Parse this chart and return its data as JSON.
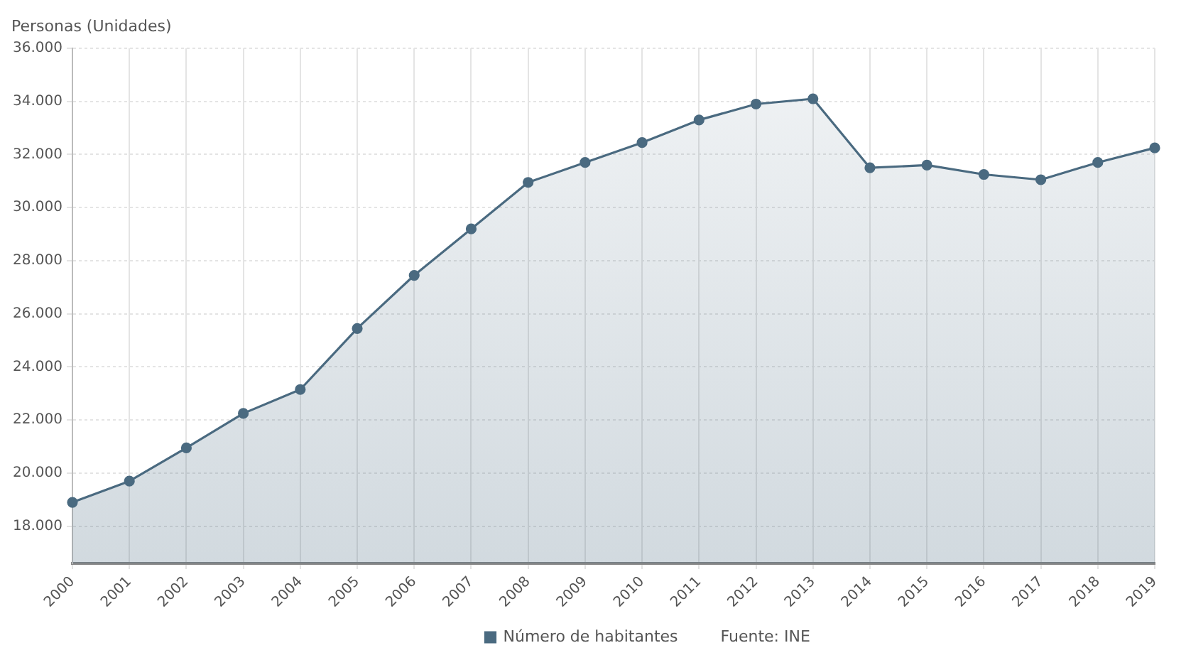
{
  "chart_data": {
    "type": "area",
    "ylabel": "Personas (Unidades)",
    "categories": [
      "2000",
      "2001",
      "2002",
      "2003",
      "2004",
      "2005",
      "2006",
      "2007",
      "2008",
      "2009",
      "2010",
      "2011",
      "2012",
      "2013",
      "2014",
      "2015",
      "2016",
      "2017",
      "2018",
      "2019"
    ],
    "series": [
      {
        "name": "Número de habitantes",
        "color": "#4a6a80",
        "values": [
          18900,
          19700,
          20950,
          22250,
          23150,
          25450,
          27450,
          29200,
          30950,
          31700,
          32450,
          33300,
          33900,
          34100,
          31500,
          31600,
          31250,
          31050,
          31700,
          32250
        ]
      }
    ],
    "ylim": [
      16600,
      36000
    ],
    "yticks": [
      {
        "value": 18000,
        "label": "18.000"
      },
      {
        "value": 20000,
        "label": "20.000"
      },
      {
        "value": 22000,
        "label": "22.000"
      },
      {
        "value": 24000,
        "label": "24.000"
      },
      {
        "value": 26000,
        "label": "26.000"
      },
      {
        "value": 28000,
        "label": "28.000"
      },
      {
        "value": 30000,
        "label": "30.000"
      },
      {
        "value": 32000,
        "label": "32.000"
      },
      {
        "value": 34000,
        "label": "34.000"
      },
      {
        "value": 36000,
        "label": "36.000"
      }
    ],
    "grid": true,
    "legend": "bottom",
    "marker": "circle",
    "line_style": "solid",
    "annotations": [
      "Fuente: INE"
    ]
  }
}
